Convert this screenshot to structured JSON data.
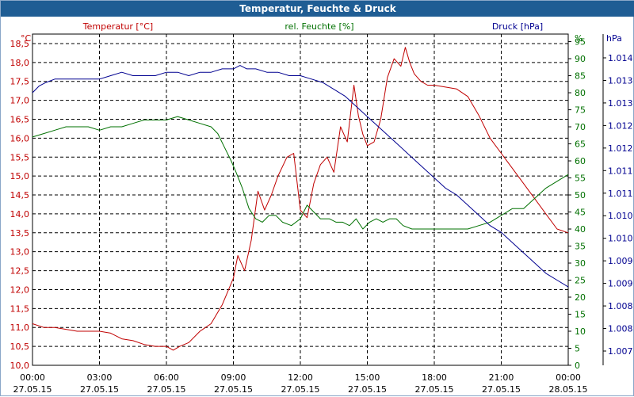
{
  "title": "Temperatur, Feuchte & Druck",
  "chart_data": {
    "type": "line",
    "title": "Temperatur, Feuchte & Druck",
    "x_ticks": [
      {
        "hours": 0,
        "time": "00:00",
        "date": "27.05.15"
      },
      {
        "hours": 3,
        "time": "03:00",
        "date": "27.05.15"
      },
      {
        "hours": 6,
        "time": "06:00",
        "date": "27.05.15"
      },
      {
        "hours": 9,
        "time": "09:00",
        "date": "27.05.15"
      },
      {
        "hours": 12,
        "time": "12:00",
        "date": "27.05.15"
      },
      {
        "hours": 15,
        "time": "15:00",
        "date": "27.05.15"
      },
      {
        "hours": 18,
        "time": "18:00",
        "date": "27.05.15"
      },
      {
        "hours": 21,
        "time": "21:00",
        "date": "27.05.15"
      },
      {
        "hours": 24,
        "time": "00:00",
        "date": "28.05.15"
      }
    ],
    "xlim": [
      0,
      24
    ],
    "grid": true,
    "axes": {
      "temperature": {
        "label": "Temperatur [°C]",
        "unit": "°C",
        "color": "#c00000",
        "ylim": [
          10.0,
          18.75
        ],
        "ticks": [
          "10,0",
          "10,5",
          "11,0",
          "11,5",
          "12,0",
          "12,5",
          "13,0",
          "13,5",
          "14,0",
          "14,5",
          "15,0",
          "15,5",
          "16,0",
          "16,5",
          "17,0",
          "17,5",
          "18,0",
          "18,5"
        ]
      },
      "humidity": {
        "label": "rel. Feuchte [%]",
        "unit": "%",
        "color": "#007000",
        "ylim": [
          0,
          97.22
        ],
        "ticks": [
          "0",
          "5",
          "10",
          "15",
          "20",
          "25",
          "30",
          "35",
          "40",
          "45",
          "50",
          "55",
          "60",
          "65",
          "70",
          "75",
          "80",
          "85",
          "90",
          "95"
        ]
      },
      "pressure": {
        "label": "Druck [hPa]",
        "unit": "hPa",
        "color": "#000090",
        "ticks": [
          "1.007",
          "1.008",
          "1.008",
          "1.009",
          "1.009",
          "1.010",
          "1.010",
          "1.011",
          "1.011",
          "1.012",
          "1.012",
          "1.013",
          "1.013",
          "1.014"
        ]
      }
    },
    "series": [
      {
        "name": "Temperatur",
        "axis": "temperature",
        "color": "#c00000",
        "x": [
          0,
          0.5,
          1,
          1.5,
          2,
          2.5,
          3,
          3.5,
          4,
          4.5,
          5,
          5.5,
          6,
          6.3,
          6.6,
          7,
          7.5,
          8,
          8.5,
          9,
          9.2,
          9.5,
          9.8,
          10.1,
          10.4,
          10.7,
          11,
          11.4,
          11.7,
          12,
          12.3,
          12.6,
          12.9,
          13.2,
          13.5,
          13.8,
          14.1,
          14.4,
          14.6,
          14.8,
          15,
          15.3,
          15.6,
          15.9,
          16.2,
          16.5,
          16.7,
          16.9,
          17.1,
          17.4,
          17.7,
          18,
          18.5,
          19,
          19.5,
          20,
          20.5,
          21,
          21.5,
          22,
          22.5,
          23,
          23.5,
          24
        ],
        "y": [
          11.1,
          11.0,
          11.0,
          10.95,
          10.9,
          10.9,
          10.9,
          10.85,
          10.7,
          10.65,
          10.55,
          10.5,
          10.5,
          10.4,
          10.5,
          10.6,
          10.9,
          11.1,
          11.6,
          12.3,
          12.9,
          12.5,
          13.3,
          14.6,
          14.1,
          14.5,
          15.0,
          15.5,
          15.6,
          14.1,
          13.9,
          14.8,
          15.3,
          15.5,
          15.1,
          16.3,
          15.9,
          17.4,
          16.6,
          16.1,
          15.8,
          15.9,
          16.5,
          17.6,
          18.1,
          17.9,
          18.4,
          18.0,
          17.7,
          17.5,
          17.4,
          17.4,
          17.35,
          17.3,
          17.1,
          16.6,
          16.0,
          15.6,
          15.2,
          14.8,
          14.4,
          14.0,
          13.6,
          13.5
        ]
      },
      {
        "name": "rel. Feuchte",
        "axis": "humidity",
        "color": "#007000",
        "x": [
          0,
          0.5,
          1,
          1.5,
          2,
          2.5,
          3,
          3.5,
          4,
          4.5,
          5,
          5.5,
          6,
          6.5,
          7,
          7.5,
          8,
          8.3,
          8.6,
          8.9,
          9.1,
          9.4,
          9.7,
          10,
          10.3,
          10.6,
          10.9,
          11.2,
          11.6,
          12,
          12.3,
          12.6,
          12.9,
          13.3,
          13.6,
          13.9,
          14.2,
          14.5,
          14.8,
          15.1,
          15.4,
          15.7,
          16,
          16.3,
          16.6,
          17,
          17.3,
          17.6,
          17.9,
          18.2,
          18.5,
          19,
          19.5,
          20,
          20.5,
          21,
          21.5,
          22,
          22.5,
          23,
          23.5,
          24
        ],
        "y": [
          67,
          68,
          69,
          70,
          70,
          70,
          69,
          70,
          70,
          71,
          72,
          72,
          72,
          73,
          72,
          71,
          70,
          68,
          64,
          60,
          57,
          52,
          46,
          43,
          42,
          44,
          44,
          42,
          41,
          43,
          47,
          45,
          43,
          43,
          42,
          42,
          41,
          43,
          40,
          42,
          43,
          42,
          43,
          43,
          41,
          40,
          40,
          40,
          40,
          40,
          40,
          40,
          40,
          41,
          42,
          44,
          46,
          46,
          49,
          52,
          54,
          56
        ]
      },
      {
        "name": "Druck",
        "axis": "pressure",
        "color": "#000090",
        "x": [
          0,
          0.3,
          0.6,
          1,
          1.5,
          2,
          2.5,
          3,
          3.5,
          4,
          4.5,
          5,
          5.5,
          6,
          6.5,
          7,
          7.5,
          8,
          8.5,
          9,
          9.3,
          9.6,
          10,
          10.5,
          11,
          11.5,
          12,
          12.5,
          13,
          13.5,
          14,
          14.5,
          15,
          15.5,
          16,
          16.5,
          17,
          17.5,
          18,
          18.5,
          19,
          19.5,
          20,
          20.5,
          21,
          21.5,
          22,
          22.5,
          23,
          23.5,
          24
        ],
        "y": [
          80,
          82,
          83,
          84,
          84,
          84,
          84,
          84,
          85,
          86,
          85,
          85,
          85,
          86,
          86,
          85,
          86,
          86,
          87,
          87,
          88,
          87,
          87,
          86,
          86,
          85,
          85,
          84,
          83,
          81,
          79,
          76,
          73,
          70,
          67,
          64,
          61,
          58,
          55,
          52,
          50,
          47,
          44,
          41,
          39,
          36,
          33,
          30,
          27,
          25,
          23
        ]
      }
    ]
  }
}
